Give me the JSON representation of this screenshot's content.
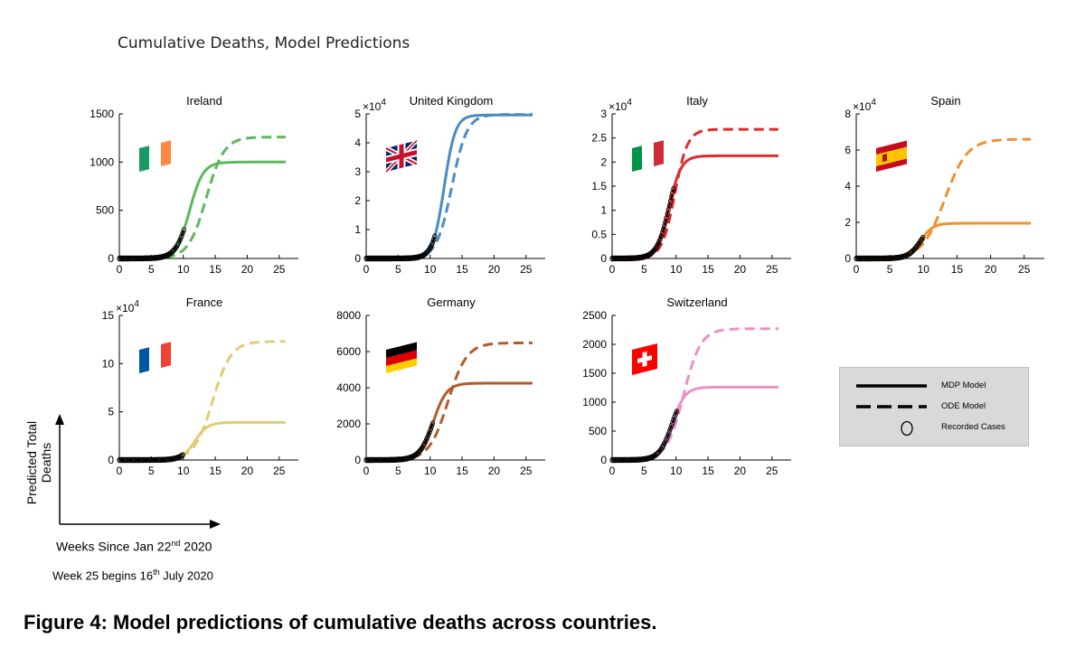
{
  "title": "Cumulative Deaths, Model Predictions",
  "caption": "Figure 4: Model predictions of cumulative deaths across countries.",
  "xlabel": {
    "main": "Weeks Since Jan 22",
    "sup": "nd",
    "tail": " 2020"
  },
  "note": {
    "main": "Week 25 begins 16",
    "sup": "th",
    "tail": " July 2020"
  },
  "ylabel": "Predicted Total Deaths",
  "legend": {
    "mdp": "MDP Model",
    "ode": "ODE Model",
    "recorded": "Recorded Cases"
  },
  "chart_data": [
    {
      "type": "line",
      "title": "Ireland",
      "flag": "ireland",
      "color": "#5cb85c",
      "xlim": [
        0,
        28
      ],
      "xticks": [
        0,
        5,
        10,
        15,
        20,
        25
      ],
      "ylim": [
        0,
        1500
      ],
      "yticks": [
        0,
        500,
        1000,
        1500
      ],
      "ytick_labels": [
        "0",
        "500",
        "1000",
        "1500"
      ],
      "exponent": "",
      "series": [
        {
          "name": "MDP Model",
          "style": "solid",
          "plateau": 1000,
          "midpoint": 11.0,
          "rate": 0.95
        },
        {
          "name": "ODE Model",
          "style": "dashed",
          "plateau": 1260,
          "midpoint": 13.6,
          "rate": 0.72
        },
        {
          "name": "Recorded Cases",
          "style": "markers",
          "range": [
            0,
            10.2
          ]
        }
      ]
    },
    {
      "type": "line",
      "title": "United Kingdom",
      "flag": "uk",
      "color": "#4a8bc2",
      "xlim": [
        0,
        28
      ],
      "xticks": [
        0,
        5,
        10,
        15,
        20,
        25
      ],
      "ylim": [
        0,
        5
      ],
      "yticks": [
        0,
        1,
        2,
        3,
        4,
        5
      ],
      "ytick_labels": [
        "0",
        "1",
        "2",
        "3",
        "4",
        "5"
      ],
      "exponent": "4",
      "series": [
        {
          "name": "MDP Model",
          "style": "solid",
          "plateau": 4.96,
          "midpoint": 12.2,
          "rate": 1.15
        },
        {
          "name": "ODE Model",
          "style": "dashed",
          "plateau": 4.98,
          "midpoint": 13.4,
          "rate": 0.85
        },
        {
          "name": "Recorded Cases",
          "style": "markers",
          "range": [
            0,
            10.8
          ]
        }
      ]
    },
    {
      "type": "line",
      "title": "Italy",
      "flag": "italy",
      "color": "#e02b2b",
      "xlim": [
        0,
        28
      ],
      "xticks": [
        0,
        5,
        10,
        15,
        20,
        25
      ],
      "ylim": [
        0,
        3
      ],
      "yticks": [
        0,
        0.5,
        1,
        1.5,
        2,
        2.5,
        3
      ],
      "ytick_labels": [
        "0",
        "0.5",
        "1",
        "1.5",
        "2",
        "2.5",
        "3"
      ],
      "exponent": "4",
      "series": [
        {
          "name": "MDP Model",
          "style": "solid",
          "plateau": 2.13,
          "midpoint": 8.9,
          "rate": 1.05
        },
        {
          "name": "ODE Model",
          "style": "dashed",
          "plateau": 2.68,
          "midpoint": 9.8,
          "rate": 1.0
        },
        {
          "name": "Recorded Cases",
          "style": "markers",
          "range": [
            0,
            9.6
          ]
        }
      ]
    },
    {
      "type": "line",
      "title": "Spain",
      "flag": "spain",
      "color": "#f0902e",
      "xlim": [
        0,
        28
      ],
      "xticks": [
        0,
        5,
        10,
        15,
        20,
        25
      ],
      "ylim": [
        0,
        8
      ],
      "yticks": [
        0,
        2,
        4,
        6,
        8
      ],
      "ytick_labels": [
        "0",
        "2",
        "4",
        "6",
        "8"
      ],
      "exponent": "4",
      "series": [
        {
          "name": "MDP Model",
          "style": "solid",
          "plateau": 1.95,
          "midpoint": 9.6,
          "rate": 1.1
        },
        {
          "name": "ODE Model",
          "style": "dashed",
          "plateau": 6.6,
          "midpoint": 13.2,
          "rate": 0.6
        },
        {
          "name": "Recorded Cases",
          "style": "markers",
          "range": [
            0,
            10.0
          ]
        }
      ]
    },
    {
      "type": "line",
      "title": "France",
      "flag": "france",
      "color": "#e2cc78",
      "xlim": [
        0,
        28
      ],
      "xticks": [
        0,
        5,
        10,
        15,
        20,
        25
      ],
      "ylim": [
        0,
        15
      ],
      "yticks": [
        0,
        5,
        10,
        15
      ],
      "ytick_labels": [
        "0",
        "5",
        "10",
        "15"
      ],
      "exponent": "4",
      "series": [
        {
          "name": "MDP Model",
          "style": "solid",
          "plateau": 3.9,
          "midpoint": 11.8,
          "rate": 1.0
        },
        {
          "name": "ODE Model",
          "style": "dashed",
          "plateau": 12.3,
          "midpoint": 14.6,
          "rate": 0.7
        },
        {
          "name": "Recorded Cases",
          "style": "markers",
          "range": [
            0,
            10.0
          ]
        }
      ]
    },
    {
      "type": "line",
      "title": "Germany",
      "flag": "germany",
      "color": "#b35a2a",
      "xlim": [
        0,
        28
      ],
      "xticks": [
        0,
        5,
        10,
        15,
        20,
        25
      ],
      "ylim": [
        0,
        8000
      ],
      "yticks": [
        0,
        2000,
        4000,
        6000,
        8000
      ],
      "ytick_labels": [
        "0",
        "2000",
        "4000",
        "6000",
        "8000"
      ],
      "exponent": "",
      "series": [
        {
          "name": "MDP Model",
          "style": "solid",
          "plateau": 4250,
          "midpoint": 10.5,
          "rate": 0.95
        },
        {
          "name": "ODE Model",
          "style": "dashed",
          "plateau": 6480,
          "midpoint": 12.8,
          "rate": 0.68
        },
        {
          "name": "Recorded Cases",
          "style": "markers",
          "range": [
            0,
            10.5
          ]
        }
      ]
    },
    {
      "type": "line",
      "title": "Switzerland",
      "flag": "switzerland",
      "color": "#ec8fc8",
      "xlim": [
        0,
        28
      ],
      "xticks": [
        0,
        5,
        10,
        15,
        20,
        25
      ],
      "ylim": [
        0,
        2500
      ],
      "yticks": [
        0,
        500,
        1000,
        1500,
        2000,
        2500
      ],
      "ytick_labels": [
        "0",
        "500",
        "1000",
        "1500",
        "2000",
        "2500"
      ],
      "exponent": "",
      "series": [
        {
          "name": "MDP Model",
          "style": "solid",
          "plateau": 1260,
          "midpoint": 9.4,
          "rate": 1.0
        },
        {
          "name": "ODE Model",
          "style": "dashed",
          "plateau": 2270,
          "midpoint": 11.2,
          "rate": 0.75
        },
        {
          "name": "Recorded Cases",
          "style": "markers",
          "range": [
            0,
            10.2
          ]
        }
      ]
    }
  ]
}
